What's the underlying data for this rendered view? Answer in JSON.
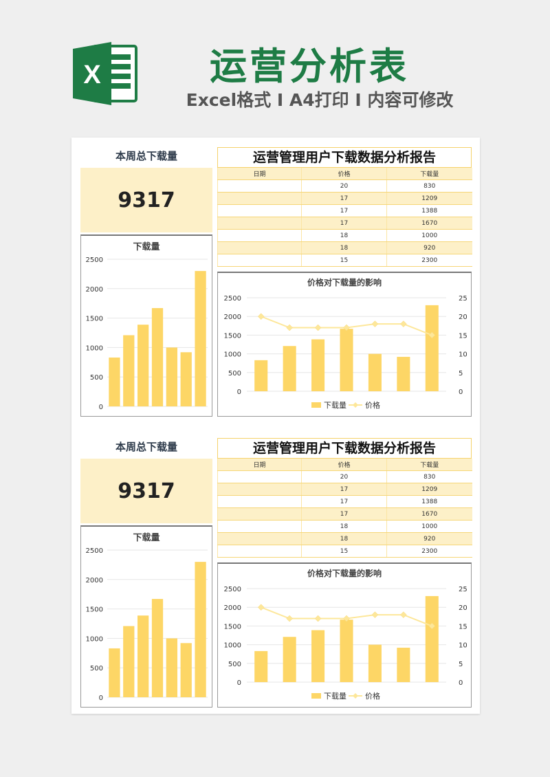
{
  "header": {
    "title": "运营分析表",
    "subtitle": "Excel格式 I A4打印 I 内容可修改",
    "logo_letter": "X",
    "logo_icon": "excel-logo-icon"
  },
  "colors": {
    "brand_green": "#1e7c45",
    "bar_yellow": "#fdd666",
    "line_yellow": "#fde79a",
    "highlight_bg": "#fdf0c8"
  },
  "panels": [
    {
      "summary": {
        "label": "本周总下载量",
        "value": "9317"
      },
      "report": {
        "title": "运营管理用户下载数据分析报告",
        "columns": [
          "日期",
          "价格",
          "下载量"
        ],
        "rows": [
          [
            "",
            "20",
            "830"
          ],
          [
            "",
            "17",
            "1209"
          ],
          [
            "",
            "17",
            "1388"
          ],
          [
            "",
            "17",
            "1670"
          ],
          [
            "",
            "18",
            "1000"
          ],
          [
            "",
            "18",
            "920"
          ],
          [
            "",
            "15",
            "2300"
          ]
        ]
      }
    },
    {
      "summary": {
        "label": "本周总下载量",
        "value": "9317"
      },
      "report": {
        "title": "运营管理用户下载数据分析报告",
        "columns": [
          "日期",
          "价格",
          "下载量"
        ],
        "rows": [
          [
            "",
            "20",
            "830"
          ],
          [
            "",
            "17",
            "1209"
          ],
          [
            "",
            "17",
            "1388"
          ],
          [
            "",
            "17",
            "1670"
          ],
          [
            "",
            "18",
            "1000"
          ],
          [
            "",
            "18",
            "920"
          ],
          [
            "",
            "15",
            "2300"
          ]
        ]
      }
    }
  ],
  "chart_data": [
    {
      "type": "bar",
      "title": "下载量",
      "values": [
        830,
        1209,
        1388,
        1670,
        1000,
        920,
        2300
      ],
      "yticks": [
        "0",
        "500",
        "1000",
        "1500",
        "2000",
        "2500"
      ],
      "ylim": [
        0,
        2500
      ],
      "grid": true
    },
    {
      "type": "bar+line",
      "title": "价格对下载量的影响",
      "series": [
        {
          "name": "下载量",
          "type": "bar",
          "axis": "left",
          "values": [
            830,
            1209,
            1388,
            1670,
            1000,
            920,
            2300
          ]
        },
        {
          "name": "价格",
          "type": "line",
          "axis": "right",
          "values": [
            20,
            17,
            17,
            17,
            18,
            18,
            15
          ]
        }
      ],
      "yticks_left": [
        "0",
        "500",
        "1000",
        "1500",
        "2000",
        "2500"
      ],
      "yticks_right": [
        "0",
        "5",
        "10",
        "15",
        "20",
        "25"
      ],
      "ylim_left": [
        0,
        2500
      ],
      "ylim_right": [
        0,
        25
      ],
      "legend": "bottom",
      "grid": true
    },
    {
      "type": "bar",
      "title": "下载量",
      "values": [
        830,
        1209,
        1388,
        1670,
        1000,
        920,
        2300
      ],
      "yticks": [
        "0",
        "500",
        "1000",
        "1500",
        "2000",
        "2500"
      ],
      "ylim": [
        0,
        2500
      ],
      "grid": true
    },
    {
      "type": "bar+line",
      "title": "价格对下载量的影响",
      "series": [
        {
          "name": "下载量",
          "type": "bar",
          "axis": "left",
          "values": [
            830,
            1209,
            1388,
            1670,
            1000,
            920,
            2300
          ]
        },
        {
          "name": "价格",
          "type": "line",
          "axis": "right",
          "values": [
            20,
            17,
            17,
            17,
            18,
            18,
            15
          ]
        }
      ],
      "yticks_left": [
        "0",
        "500",
        "1000",
        "1500",
        "2000",
        "2500"
      ],
      "yticks_right": [
        "0",
        "5",
        "10",
        "15",
        "20",
        "25"
      ],
      "ylim_left": [
        0,
        2500
      ],
      "ylim_right": [
        0,
        25
      ],
      "legend": "bottom",
      "grid": true
    }
  ]
}
